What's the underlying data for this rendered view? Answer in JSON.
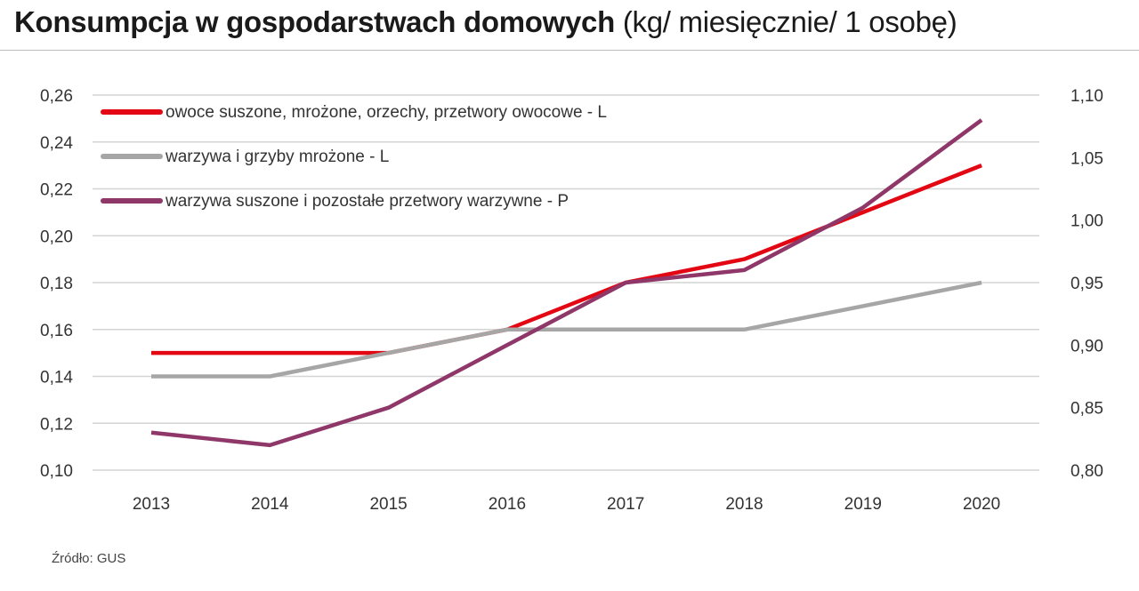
{
  "title": {
    "main": "Konsumpcja w gospodarstwach domowych",
    "unit": "(kg/ miesięcznie/ 1 osobę)"
  },
  "source": "Źródło: GUS",
  "chart_data": {
    "type": "line",
    "title": "Konsumpcja w gospodarstwach domowych (kg/ miesięcznie/ 1 osobę)",
    "x": [
      "2013",
      "2014",
      "2015",
      "2016",
      "2017",
      "2018",
      "2019",
      "2020"
    ],
    "y_left": {
      "min": 0.1,
      "max": 0.26,
      "step": 0.02,
      "tick_labels": [
        "0,10",
        "0,12",
        "0,14",
        "0,16",
        "0,18",
        "0,20",
        "0,22",
        "0,24",
        "0,26"
      ]
    },
    "y_right": {
      "min": 0.8,
      "max": 1.1,
      "step": 0.05,
      "tick_labels": [
        "0,80",
        "0,85",
        "0,90",
        "0,95",
        "1,00",
        "1,05",
        "1,10"
      ]
    },
    "grid": true,
    "legend_position": "top-left",
    "series": [
      {
        "name": "owoce suszone, mrożone, orzechy, przetwory owocowe - L",
        "axis": "left",
        "color": "#e30613",
        "values": [
          0.15,
          0.15,
          0.15,
          0.16,
          0.18,
          0.19,
          0.21,
          0.23
        ]
      },
      {
        "name": "warzywa i grzyby mrożone - L",
        "axis": "left",
        "color": "#a6a6a6",
        "values": [
          0.14,
          0.14,
          0.15,
          0.16,
          0.16,
          0.16,
          0.17,
          0.18
        ]
      },
      {
        "name": "warzywa suszone i pozostałe przetwory warzywne - P",
        "axis": "right",
        "color": "#8e3768",
        "values": [
          0.83,
          0.82,
          0.85,
          0.9,
          0.95,
          0.96,
          1.01,
          1.08
        ]
      }
    ]
  }
}
